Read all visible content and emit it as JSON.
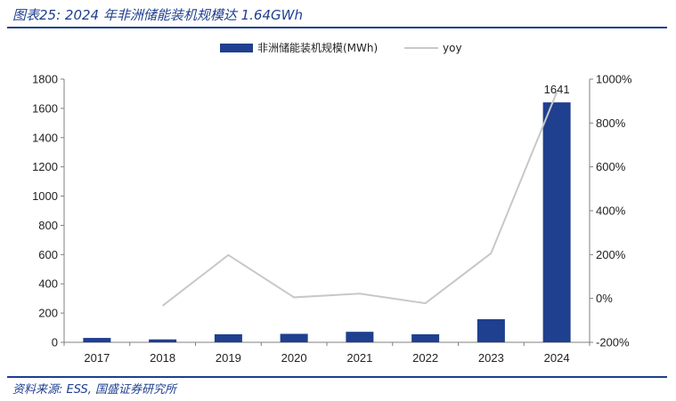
{
  "header": {
    "title": "图表25:  2024 年非洲储能装机规模达 1.64GWh"
  },
  "footer": {
    "source": "资料来源: ESS, 国盛证券研究所"
  },
  "chart_data": {
    "type": "bar",
    "categories": [
      "2017",
      "2018",
      "2019",
      "2020",
      "2021",
      "2022",
      "2023",
      "2024"
    ],
    "series": [
      {
        "name": "非洲储能装机规模(MWh)",
        "type": "bar",
        "axis": "left",
        "color": "#1f3f8f",
        "values": [
          30,
          20,
          55,
          58,
          72,
          55,
          158,
          1641
        ]
      },
      {
        "name": "yoy",
        "type": "line",
        "axis": "right",
        "color": "#c8c8c8",
        "values": [
          null,
          -33,
          198,
          5,
          22,
          -22,
          206,
          940
        ]
      }
    ],
    "data_labels": [
      {
        "category": "2024",
        "text": "1641"
      }
    ],
    "ylim_left": [
      0,
      1800
    ],
    "yticks_left": [
      "0",
      "200",
      "400",
      "600",
      "800",
      "1000",
      "1200",
      "1400",
      "1600",
      "1800"
    ],
    "ylim_right": [
      -200,
      1000
    ],
    "yticks_right": [
      "-200%",
      "0%",
      "200%",
      "400%",
      "600%",
      "800%",
      "1000%"
    ],
    "legend_position": "top-center",
    "grid": false
  }
}
